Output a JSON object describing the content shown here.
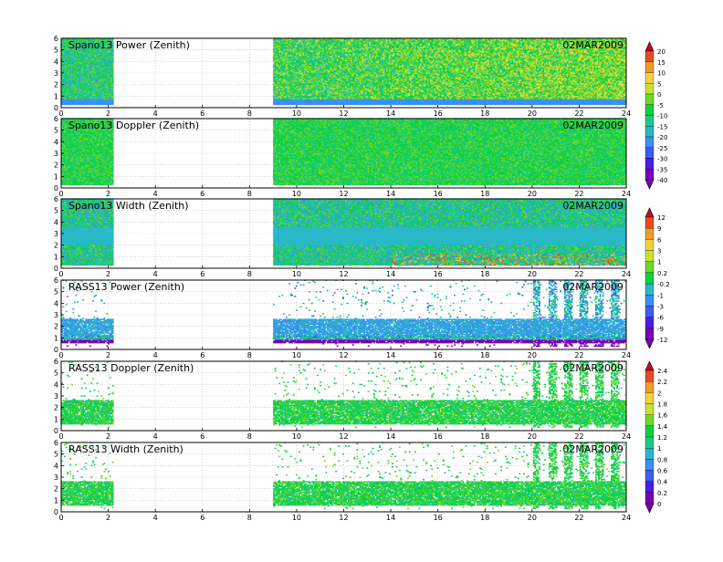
{
  "date": "02MAR2009",
  "colors": {
    "scale": [
      "#7a00b4",
      "#4a1ee0",
      "#3d5cf0",
      "#3b8ff2",
      "#28b8c8",
      "#1ec88a",
      "#10d040",
      "#6ad82a",
      "#c8e034",
      "#f0d23c",
      "#f09a2a",
      "#e84a20",
      "#c80820"
    ],
    "frame": "#000000",
    "grid": "#b8b8b8"
  },
  "chart_data": [
    {
      "type": "heatmap",
      "title": "Spano13 Power (Zenith)",
      "xlim": [
        0,
        24
      ],
      "ylim": [
        0,
        6
      ],
      "x_ticks": [
        "0",
        "2",
        "4",
        "6",
        "8",
        "10",
        "12",
        "14",
        "16",
        "18",
        "20",
        "22",
        "24"
      ],
      "y_ticks": [
        "0",
        "1",
        "2",
        "3",
        "4",
        "5",
        "6"
      ],
      "data_coverage": [
        [
          0,
          2.2
        ],
        [
          9,
          24
        ]
      ],
      "level_base": 6,
      "level_spread": 2,
      "level_trend": 0.08
    },
    {
      "type": "heatmap",
      "title": "Spano13 Doppler (Zenith)",
      "xlim": [
        0,
        24
      ],
      "ylim": [
        0,
        6
      ],
      "x_ticks": [
        "0",
        "2",
        "4",
        "6",
        "8",
        "10",
        "12",
        "14",
        "16",
        "18",
        "20",
        "22",
        "24"
      ],
      "y_ticks": [
        "0",
        "1",
        "2",
        "3",
        "4",
        "5",
        "6"
      ],
      "data_coverage": [
        [
          0,
          2.2
        ],
        [
          9,
          24
        ]
      ],
      "level_base": 6,
      "level_spread": 1,
      "level_trend": 0
    },
    {
      "type": "heatmap",
      "title": "Spano13 Width (Zenith)",
      "xlim": [
        0,
        24
      ],
      "ylim": [
        0,
        6
      ],
      "x_ticks": [
        "0",
        "2",
        "4",
        "6",
        "8",
        "10",
        "12",
        "14",
        "16",
        "18",
        "20",
        "22",
        "24"
      ],
      "y_ticks": [
        "0",
        "1",
        "2",
        "3",
        "4",
        "5",
        "6"
      ],
      "data_coverage": [
        [
          0,
          2.2
        ],
        [
          9,
          24
        ]
      ],
      "level_base": 5,
      "level_spread": 2,
      "level_trend": 0
    },
    {
      "type": "heatmap",
      "title": "RASS13 Power (Zenith)",
      "xlim": [
        0,
        24
      ],
      "ylim": [
        0,
        6
      ],
      "x_ticks": [
        "0",
        "2",
        "4",
        "6",
        "8",
        "10",
        "12",
        "14",
        "16",
        "18",
        "20",
        "22",
        "24"
      ],
      "y_ticks": [
        "0",
        "1",
        "2",
        "3",
        "4",
        "5",
        "6"
      ],
      "data_coverage": [
        [
          0,
          2.2
        ],
        [
          9,
          24
        ]
      ],
      "level_base": 4,
      "level_spread": 2,
      "level_trend": 0
    },
    {
      "type": "heatmap",
      "title": "RASS13 Doppler (Zenith)",
      "xlim": [
        0,
        24
      ],
      "ylim": [
        0,
        6
      ],
      "x_ticks": [
        "0",
        "2",
        "4",
        "6",
        "8",
        "10",
        "12",
        "14",
        "16",
        "18",
        "20",
        "22",
        "24"
      ],
      "y_ticks": [
        "0",
        "1",
        "2",
        "3",
        "4",
        "5",
        "6"
      ],
      "data_coverage": [
        [
          0,
          2.2
        ],
        [
          9,
          24
        ]
      ],
      "level_base": 6,
      "level_spread": 1,
      "level_trend": 0
    },
    {
      "type": "heatmap",
      "title": "RASS13 Width (Zenith)",
      "xlim": [
        0,
        24
      ],
      "ylim": [
        0,
        6
      ],
      "x_ticks": [
        "0",
        "2",
        "4",
        "6",
        "8",
        "10",
        "12",
        "14",
        "16",
        "18",
        "20",
        "22",
        "24"
      ],
      "y_ticks": [
        "0",
        "1",
        "2",
        "3",
        "4",
        "5",
        "6"
      ],
      "data_coverage": [
        [
          0,
          2.2
        ],
        [
          9,
          24
        ]
      ],
      "level_base": 6,
      "level_spread": 1,
      "level_trend": 0
    }
  ],
  "colorbars": [
    {
      "labels": [
        "20",
        "15",
        "10",
        "5",
        "0",
        "-5",
        "-10",
        "-15",
        "-20",
        "-25",
        "-30",
        "-35",
        "-40"
      ]
    },
    {
      "labels": [
        "12",
        "9",
        "6",
        "3",
        "1",
        "0.2",
        "-0.2",
        "-1",
        "-3",
        "-6",
        "-9",
        "-12"
      ]
    },
    {
      "labels": [
        "2.4",
        "2.2",
        "2",
        "1.8",
        "1.6",
        "1.4",
        "1.2",
        "1",
        "0.8",
        "0.6",
        "0.4",
        "0.2",
        "0"
      ]
    }
  ]
}
